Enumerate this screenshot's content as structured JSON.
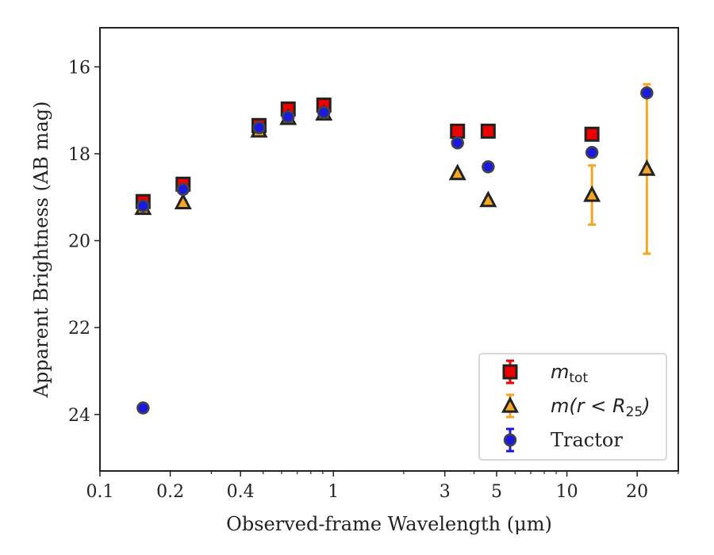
{
  "chart_data": {
    "type": "scatter",
    "title": "",
    "xlabel": "Observed-frame Wavelength (μm)",
    "ylabel": "Apparent Brightness (AB mag)",
    "xscale": "log",
    "xlim": [
      0.1,
      30
    ],
    "ylim": [
      25.3,
      15.1
    ],
    "y_inverted": true,
    "x_tick_labels": [
      {
        "value": 0.1,
        "label": "0.1"
      },
      {
        "value": 0.2,
        "label": "0.2"
      },
      {
        "value": 0.4,
        "label": "0.4"
      },
      {
        "value": 1,
        "label": "1"
      },
      {
        "value": 3,
        "label": "3"
      },
      {
        "value": 5,
        "label": "5"
      },
      {
        "value": 10,
        "label": "10"
      },
      {
        "value": 20,
        "label": "20"
      }
    ],
    "y_tick_labels": [
      {
        "value": 16,
        "label": "16"
      },
      {
        "value": 18,
        "label": "18"
      },
      {
        "value": 20,
        "label": "20"
      },
      {
        "value": 22,
        "label": "22"
      },
      {
        "value": 24,
        "label": "24"
      }
    ],
    "grid": false,
    "legend": {
      "placement": "lower-right"
    },
    "series": [
      {
        "legend_main": "m",
        "legend_sub": "tot",
        "marker": "square",
        "color": "#ee0000",
        "edgecolor": "#222222",
        "errorcolor": "#ee0000",
        "x": [
          0.153,
          0.227,
          0.48,
          0.64,
          0.91,
          3.4,
          4.6,
          12.8
        ],
        "y": [
          19.1,
          18.7,
          17.35,
          16.97,
          16.88,
          17.48,
          17.48,
          17.55
        ],
        "yerr": [
          0.06,
          0.05,
          0.03,
          0.03,
          0.03,
          0.03,
          0.03,
          0.04
        ]
      },
      {
        "legend_main": "m(r < R",
        "legend_sub": "25",
        "legend_tail": ")",
        "marker": "triangle",
        "color": "#f5a623",
        "edgecolor": "#222222",
        "errorcolor": "#f5a623",
        "x": [
          0.153,
          0.227,
          0.48,
          0.64,
          0.91,
          3.4,
          4.6,
          12.8,
          22.0
        ],
        "y": [
          19.25,
          19.12,
          17.47,
          17.18,
          17.08,
          18.45,
          19.07,
          18.95,
          18.35
        ],
        "yerr": [
          0.05,
          0.05,
          0.03,
          0.03,
          0.03,
          0.04,
          0.05,
          0.68,
          1.95
        ]
      },
      {
        "legend_main": "Tractor",
        "marker": "circle",
        "color": "#1a1adf",
        "edgecolor": "#444444",
        "errorcolor": "#1a1adf",
        "x": [
          0.153,
          0.153,
          0.227,
          0.48,
          0.64,
          0.91,
          3.4,
          4.6,
          12.8,
          22.0
        ],
        "y": [
          23.85,
          19.2,
          18.82,
          17.4,
          17.15,
          17.05,
          17.75,
          18.3,
          17.97,
          16.6
        ],
        "yerr": [
          0.03,
          0.03,
          0.03,
          0.02,
          0.02,
          0.02,
          0.02,
          0.03,
          0.03,
          0.04
        ]
      }
    ]
  }
}
